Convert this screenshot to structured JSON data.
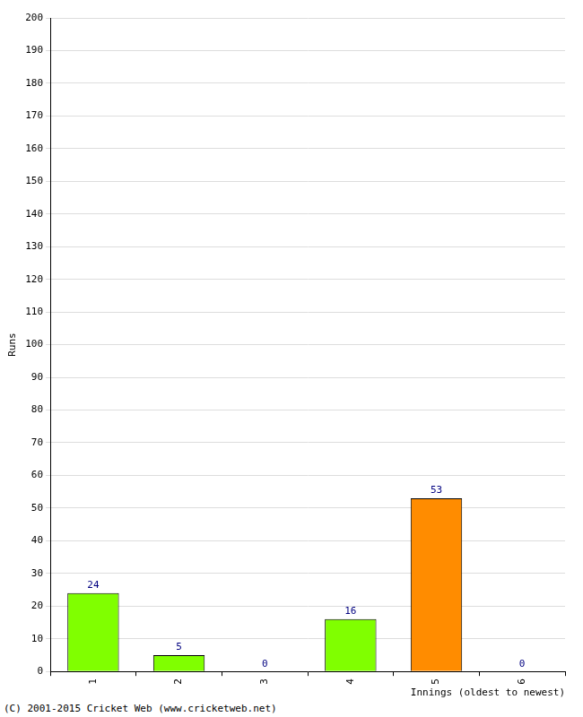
{
  "chart_data": {
    "type": "bar",
    "categories": [
      "1",
      "2",
      "3",
      "4",
      "5",
      "6"
    ],
    "values": [
      24,
      5,
      0,
      16,
      53,
      0
    ],
    "colors": [
      "#80ff00",
      "#80ff00",
      "#80ff00",
      "#80ff00",
      "#ff8c00",
      "#80ff00"
    ],
    "x_label": "Innings (oldest to newest)",
    "y_label": "Runs",
    "annotations": [
      "(C) 2001-2015 Cricket Web (www.cricketweb.net)"
    ],
    "ylim": [
      0,
      200
    ],
    "yticks": [
      0,
      10,
      20,
      30,
      40,
      50,
      60,
      70,
      80,
      90,
      100,
      110,
      120,
      130,
      140,
      150,
      160,
      170,
      180,
      190,
      200
    ],
    "grid": true,
    "data_labels": true
  }
}
